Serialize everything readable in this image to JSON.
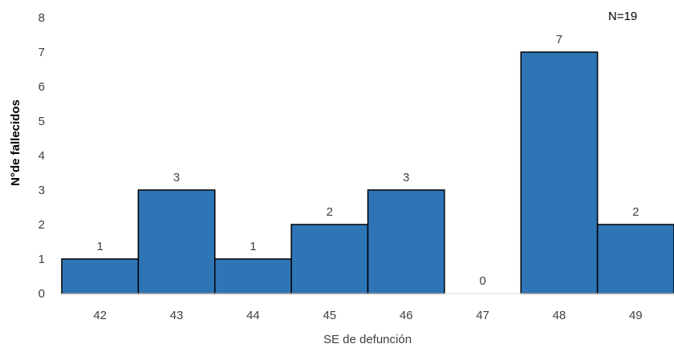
{
  "chart_data": {
    "type": "bar",
    "categories": [
      "42",
      "43",
      "44",
      "45",
      "46",
      "47",
      "48",
      "49"
    ],
    "values": [
      1,
      3,
      1,
      2,
      3,
      0,
      7,
      2
    ],
    "xlabel": "SE de defunción",
    "ylabel": "N°de fallecidos",
    "ylim": [
      0,
      8
    ],
    "yticks": [
      "0",
      "1",
      "2",
      "3",
      "4",
      "5",
      "6",
      "7",
      "8"
    ],
    "annotation": "N=19",
    "grid": false,
    "bar_color": "#2E75B6",
    "bar_edge_color": "#000000"
  }
}
